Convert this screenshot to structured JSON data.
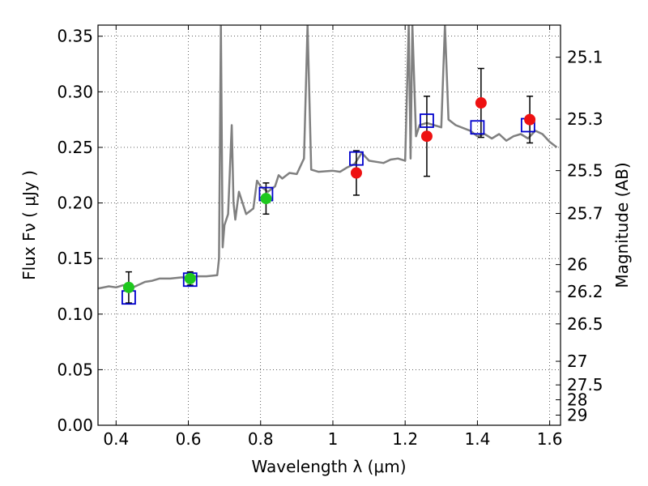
{
  "chart_data": {
    "type": "scatter",
    "title": "",
    "xlabel": "Wavelength  λ (μm)",
    "ylabel": "Flux  Fν  ( μJy )",
    "y2label": "Magnitude (AB)",
    "xlim": [
      0.35,
      1.63
    ],
    "ylim": [
      0.0,
      0.36
    ],
    "grid": true,
    "x_ticks": [
      0.4,
      0.6,
      0.8,
      1.0,
      1.2,
      1.4,
      1.6
    ],
    "x_tick_labels": [
      "0.4",
      "0.6",
      "0.8",
      "1",
      "1.2",
      "1.4",
      "1.6"
    ],
    "y_ticks": [
      0.0,
      0.05,
      0.1,
      0.15,
      0.2,
      0.25,
      0.3,
      0.35
    ],
    "y_tick_labels": [
      "0.00",
      "0.05",
      "0.10",
      "0.15",
      "0.20",
      "0.25",
      "0.30",
      "0.35"
    ],
    "y2_ticks": [
      {
        "label": "25.1",
        "mag": 25.1
      },
      {
        "label": "25.3",
        "mag": 25.3
      },
      {
        "label": "25.5",
        "mag": 25.5
      },
      {
        "label": "25.7",
        "mag": 25.7
      },
      {
        "label": "26",
        "mag": 26.0
      },
      {
        "label": "26.2",
        "mag": 26.2
      },
      {
        "label": "26.5",
        "mag": 26.5
      },
      {
        "label": "27",
        "mag": 27.0
      },
      {
        "label": "27.5",
        "mag": 27.5
      },
      {
        "label": "28",
        "mag": 28.0
      },
      {
        "label": "29",
        "mag": 29.0
      }
    ],
    "colors": {
      "spectrum": "#808080",
      "optical_points": "#1ec81e",
      "nir_points": "#ee1111",
      "model_boxes": "#0000cc",
      "errorbar": "#000000"
    },
    "spectrum": {
      "x": [
        0.35,
        0.38,
        0.4,
        0.42,
        0.44,
        0.46,
        0.48,
        0.5,
        0.52,
        0.55,
        0.58,
        0.6,
        0.62,
        0.65,
        0.68,
        0.685,
        0.69,
        0.695,
        0.7,
        0.71,
        0.72,
        0.725,
        0.73,
        0.74,
        0.76,
        0.78,
        0.79,
        0.8,
        0.82,
        0.84,
        0.85,
        0.86,
        0.88,
        0.9,
        0.92,
        0.93,
        0.94,
        0.96,
        1.0,
        1.02,
        1.04,
        1.06,
        1.08,
        1.1,
        1.12,
        1.14,
        1.16,
        1.18,
        1.2,
        1.21,
        1.215,
        1.22,
        1.23,
        1.24,
        1.26,
        1.28,
        1.3,
        1.31,
        1.32,
        1.34,
        1.38,
        1.4,
        1.42,
        1.44,
        1.46,
        1.48,
        1.5,
        1.52,
        1.54,
        1.56,
        1.58,
        1.6,
        1.62
      ],
      "y": [
        0.123,
        0.125,
        0.124,
        0.126,
        0.123,
        0.126,
        0.129,
        0.13,
        0.132,
        0.132,
        0.133,
        0.133,
        0.134,
        0.134,
        0.135,
        0.15,
        0.36,
        0.16,
        0.18,
        0.19,
        0.27,
        0.2,
        0.185,
        0.21,
        0.19,
        0.195,
        0.22,
        0.215,
        0.21,
        0.215,
        0.225,
        0.222,
        0.227,
        0.226,
        0.24,
        0.36,
        0.23,
        0.228,
        0.229,
        0.228,
        0.232,
        0.235,
        0.245,
        0.238,
        0.237,
        0.236,
        0.239,
        0.24,
        0.238,
        0.36,
        0.24,
        0.36,
        0.26,
        0.27,
        0.272,
        0.27,
        0.268,
        0.36,
        0.275,
        0.27,
        0.265,
        0.26,
        0.262,
        0.258,
        0.262,
        0.256,
        0.26,
        0.262,
        0.258,
        0.265,
        0.262,
        0.255,
        0.25
      ]
    },
    "optical_points": {
      "x": [
        0.435,
        0.605,
        0.815
      ],
      "y": [
        0.124,
        0.132,
        0.204
      ],
      "yerr": [
        0.014,
        0.006,
        0.014
      ]
    },
    "nir_points": {
      "x": [
        1.065,
        1.26,
        1.41,
        1.545
      ],
      "y": [
        0.227,
        0.26,
        0.29,
        0.275
      ],
      "yerr": [
        0.02,
        0.036,
        0.031,
        0.021
      ]
    },
    "model_boxes": {
      "x": [
        0.435,
        0.605,
        0.815,
        1.065,
        1.26,
        1.4,
        1.54
      ],
      "y": [
        0.115,
        0.131,
        0.208,
        0.24,
        0.274,
        0.268,
        0.27
      ]
    }
  }
}
